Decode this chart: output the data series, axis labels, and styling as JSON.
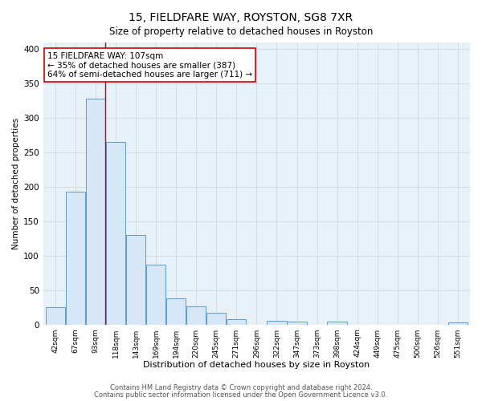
{
  "title": "15, FIELDFARE WAY, ROYSTON, SG8 7XR",
  "subtitle": "Size of property relative to detached houses in Royston",
  "xlabel": "Distribution of detached houses by size in Royston",
  "ylabel": "Number of detached properties",
  "bin_labels": [
    "42sqm",
    "67sqm",
    "93sqm",
    "118sqm",
    "143sqm",
    "169sqm",
    "194sqm",
    "220sqm",
    "245sqm",
    "271sqm",
    "296sqm",
    "322sqm",
    "347sqm",
    "373sqm",
    "398sqm",
    "424sqm",
    "449sqm",
    "475sqm",
    "500sqm",
    "526sqm",
    "551sqm"
  ],
  "bar_heights": [
    25,
    193,
    328,
    265,
    130,
    87,
    38,
    26,
    17,
    8,
    0,
    5,
    4,
    0,
    4,
    0,
    0,
    0,
    0,
    0,
    3
  ],
  "bar_color": "#d6e8f7",
  "bar_edge_color": "#5b9bd5",
  "vline_x": 2.5,
  "vline_color": "#cc0000",
  "annotation_text": "15 FIELDFARE WAY: 107sqm\n← 35% of detached houses are smaller (387)\n64% of semi-detached houses are larger (711) →",
  "annotation_box_edge": "#cc0000",
  "annotation_box_face": "#ffffff",
  "ylim": [
    0,
    410
  ],
  "yticks": [
    0,
    50,
    100,
    150,
    200,
    250,
    300,
    350,
    400
  ],
  "grid_color": "#d0d8e0",
  "bg_color": "#f0f4f8",
  "plot_bg_color": "#e8f0f8",
  "footer_line1": "Contains HM Land Registry data © Crown copyright and database right 2024.",
  "footer_line2": "Contains public sector information licensed under the Open Government Licence v3.0."
}
